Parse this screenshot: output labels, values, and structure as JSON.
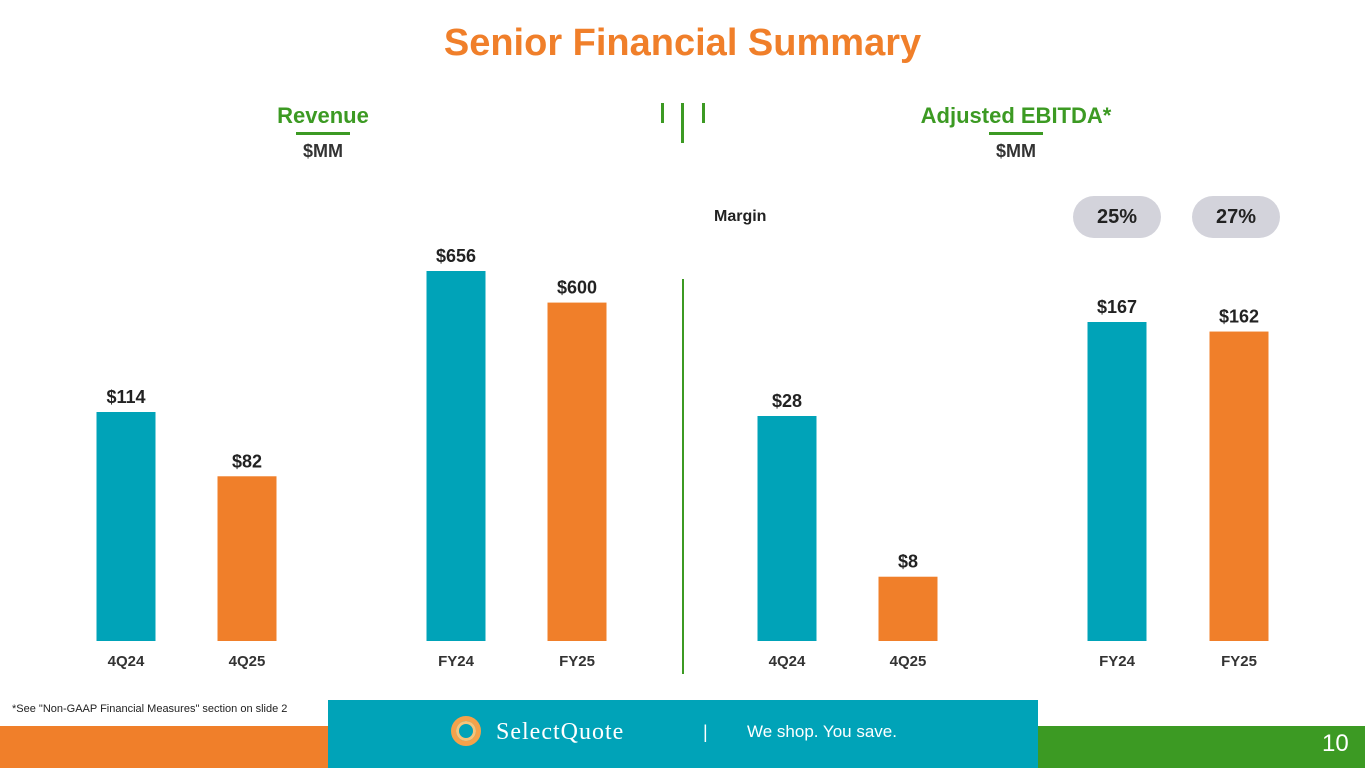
{
  "title": "Senior Financial Summary",
  "revenue_panel": {
    "heading": "Revenue",
    "unit": "$MM"
  },
  "ebitda_panel": {
    "heading": "Adjusted EBITDA*",
    "unit": "$MM",
    "margin_label": "Margin",
    "margins": [
      "25%",
      "27%"
    ]
  },
  "colors": {
    "teal": "#00A3B8",
    "orange": "#F07F2A",
    "green": "#3C9A23",
    "title": "#F07F2A"
  },
  "chart_data": [
    {
      "type": "bar",
      "title": "Revenue",
      "ylabel": "$MM",
      "categories": [
        "4Q24",
        "4Q25",
        "FY24",
        "FY25"
      ],
      "values": [
        114,
        82,
        656,
        600
      ],
      "labels": [
        "$114",
        "$82",
        "$656",
        "$600"
      ],
      "bar_colors": [
        "#00A3B8",
        "#F07F2A",
        "#00A3B8",
        "#F07F2A"
      ]
    },
    {
      "type": "bar",
      "title": "Adjusted EBITDA*",
      "ylabel": "$MM",
      "categories": [
        "4Q24",
        "4Q25",
        "FY24",
        "FY25"
      ],
      "values": [
        28,
        8,
        167,
        162
      ],
      "labels": [
        "$28",
        "$8",
        "$167",
        "$162"
      ],
      "bar_colors": [
        "#00A3B8",
        "#F07F2A",
        "#00A3B8",
        "#F07F2A"
      ]
    }
  ],
  "footnote": "*See \"Non-GAAP Financial Measures\" section on slide 2",
  "footer": {
    "brand": "SelectQuote",
    "separator": "|",
    "tagline": "We shop. You save."
  },
  "page_number": "10"
}
